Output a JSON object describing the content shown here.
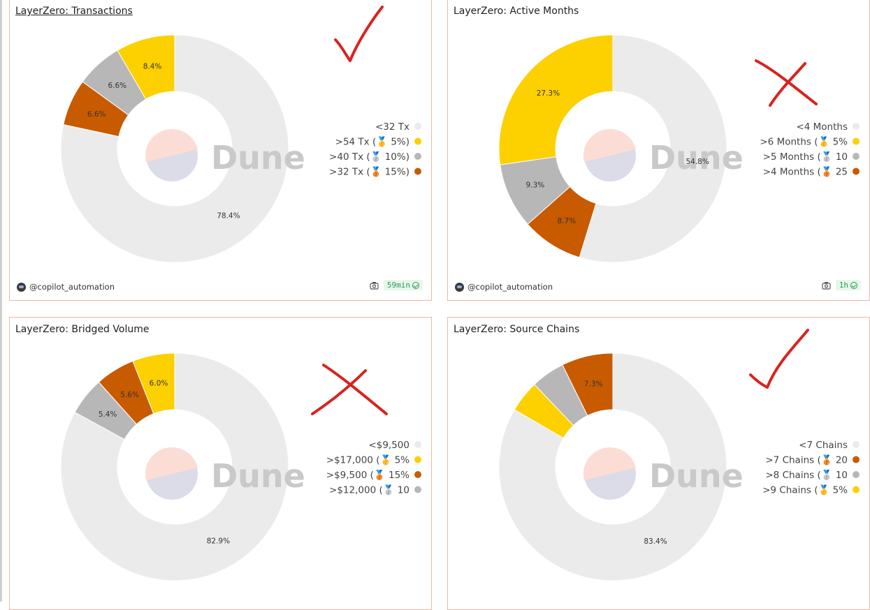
{
  "colors": {
    "slice_light": "#ebebeb",
    "slice_gold": "#fdd000",
    "slice_silver": "#b7b7b7",
    "slice_bronze": "#c85a00",
    "annotation_red": "#d8231e"
  },
  "watermark": "Dune",
  "panels": [
    {
      "title": "LayerZero: Transactions",
      "author": "@copilot_automation",
      "refresh": "59min",
      "annotation": "check-mark",
      "chart_data": {
        "type": "pie",
        "categories": [
          "<32 Tx",
          ">54 Tx",
          ">40 Tx",
          ">32 Tx"
        ],
        "values": [
          78.4,
          8.4,
          6.6,
          6.6
        ],
        "value_labels": [
          "78.4%",
          "8.4%",
          "6.6%",
          "6.6%"
        ],
        "slice_colors": [
          "#ebebeb",
          "#fdd000",
          "#b7b7b7",
          "#c85a00"
        ],
        "legend": [
          {
            "label": "<32 Tx",
            "medal": "",
            "color": "#ebebeb"
          },
          {
            "label": ">54 Tx (",
            "medal": "🥇",
            "suffix": " 5%)",
            "color": "#fdd000"
          },
          {
            "label": ">40 Tx (",
            "medal": "🥈",
            "suffix": " 10%)",
            "color": "#b7b7b7"
          },
          {
            "label": ">32 Tx (",
            "medal": "🥉",
            "suffix": " 15%)",
            "color": "#c85a00"
          }
        ],
        "legend_position": "right"
      }
    },
    {
      "title": "LayerZero: Active Months",
      "author": "@copilot_automation",
      "refresh": "1h",
      "annotation": "cross-mark",
      "chart_data": {
        "type": "pie",
        "categories": [
          "<4 Months",
          ">6 Months",
          ">5 Months",
          ">4 Months"
        ],
        "values": [
          54.8,
          27.3,
          9.3,
          8.7
        ],
        "value_labels": [
          "54.8%",
          "27.3%",
          "9.3%",
          "8.7%"
        ],
        "slice_colors": [
          "#ebebeb",
          "#fdd000",
          "#b7b7b7",
          "#c85a00"
        ],
        "legend": [
          {
            "label": "<4 Months",
            "medal": "",
            "color": "#ebebeb"
          },
          {
            "label": ">6 Months (",
            "medal": "🥇",
            "suffix": " 5%",
            "color": "#fdd000"
          },
          {
            "label": ">5 Months (",
            "medal": "🥈",
            "suffix": " 10",
            "color": "#b7b7b7"
          },
          {
            "label": ">4 Months (",
            "medal": "🥉",
            "suffix": " 25",
            "color": "#c85a00"
          }
        ],
        "legend_position": "right"
      }
    },
    {
      "title": "LayerZero: Bridged Volume",
      "author": "",
      "refresh": "",
      "annotation": "cross-mark",
      "chart_data": {
        "type": "pie",
        "categories": [
          "<$9,500",
          ">$17,000",
          ">$9,500",
          ">$12,000"
        ],
        "values": [
          82.9,
          6.0,
          5.6,
          5.4
        ],
        "value_labels": [
          "82.9%",
          "6.0%",
          "5.6%",
          "5.4%"
        ],
        "slice_colors": [
          "#ebebeb",
          "#fdd000",
          "#c85a00",
          "#b7b7b7"
        ],
        "legend": [
          {
            "label": "<$9,500",
            "medal": "",
            "color": "#ebebeb"
          },
          {
            "label": ">$17,000 (",
            "medal": "🥇",
            "suffix": " 5%",
            "color": "#fdd000"
          },
          {
            "label": ">$9,500 (",
            "medal": "🥉",
            "suffix": " 15%",
            "color": "#c85a00"
          },
          {
            "label": ">$12,000 (",
            "medal": "🥈",
            "suffix": " 10",
            "color": "#b7b7b7"
          }
        ],
        "legend_position": "right"
      }
    },
    {
      "title": "LayerZero: Source Chains",
      "author": "",
      "refresh": "",
      "annotation": "check-mark",
      "chart_data": {
        "type": "pie",
        "categories": [
          "<7 Chains",
          ">7 Chains",
          ">8 Chains",
          ">9 Chains"
        ],
        "values": [
          83.4,
          7.3,
          4.8,
          4.5
        ],
        "value_labels": [
          "83.4%",
          "7.3%",
          "",
          ""
        ],
        "slice_colors": [
          "#ebebeb",
          "#c85a00",
          "#b7b7b7",
          "#fdd000"
        ],
        "legend": [
          {
            "label": "<7 Chains",
            "medal": "",
            "color": "#ebebeb"
          },
          {
            "label": ">7 Chains (",
            "medal": "🥉",
            "suffix": " 20",
            "color": "#c85a00"
          },
          {
            "label": ">8 Chains (",
            "medal": "🥈",
            "suffix": " 10",
            "color": "#b7b7b7"
          },
          {
            "label": ">9 Chains (",
            "medal": "🥇",
            "suffix": " 5%",
            "color": "#fdd000"
          }
        ],
        "legend_position": "right"
      }
    }
  ]
}
